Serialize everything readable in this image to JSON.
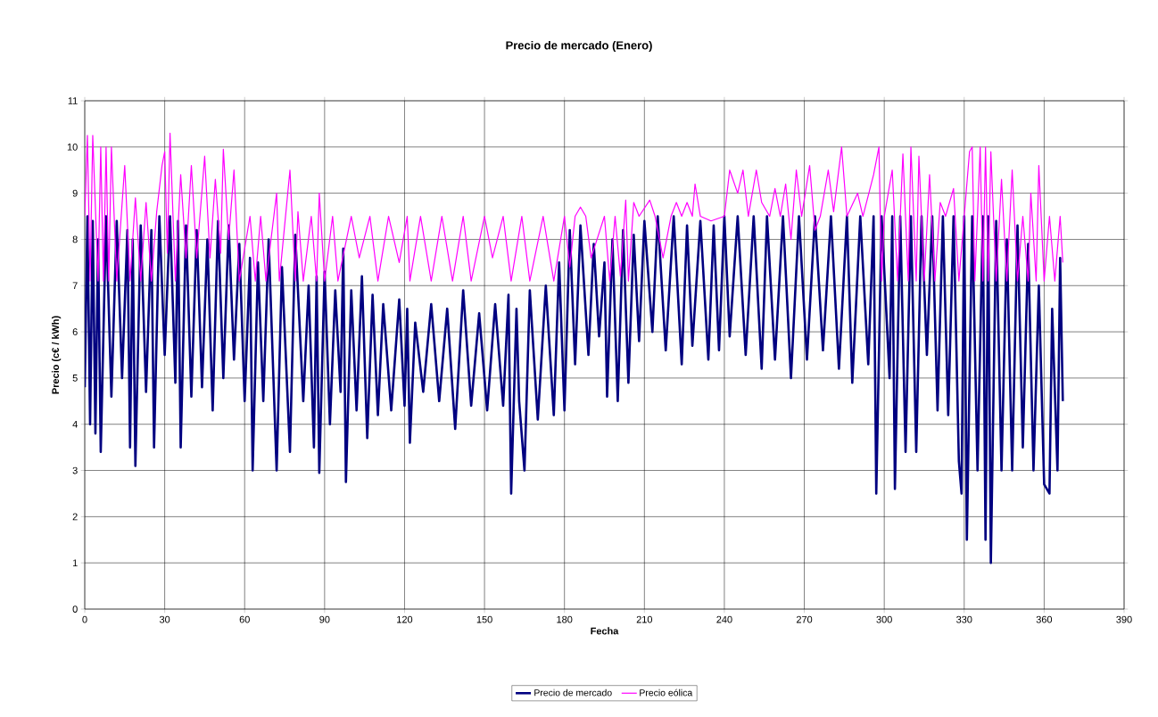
{
  "chart_data": {
    "type": "line",
    "title": "Precio de mercado (Enero)",
    "xlabel": "Fecha",
    "ylabel": "Precio (c€ / kWh)",
    "xlim": [
      0,
      390
    ],
    "xticks": [
      0,
      30,
      60,
      90,
      120,
      150,
      180,
      210,
      240,
      270,
      300,
      330,
      360,
      390
    ],
    "ylim": [
      0,
      11
    ],
    "yticks": [
      0,
      1,
      2,
      3,
      4,
      5,
      6,
      7,
      8,
      9,
      10,
      11
    ],
    "grid": true,
    "legend": "bottom",
    "marker": "none",
    "line_style": "solid",
    "series": [
      {
        "name": "Precio de mercado",
        "color": "#000080",
        "x": [
          0,
          1,
          2,
          3,
          4,
          5,
          6,
          8,
          10,
          12,
          14,
          16,
          17,
          18,
          19,
          21,
          23,
          25,
          26,
          28,
          30,
          32,
          34,
          35,
          36,
          38,
          40,
          42,
          44,
          46,
          48,
          50,
          52,
          54,
          56,
          58,
          60,
          62,
          63,
          65,
          67,
          69,
          72,
          74,
          77,
          79,
          82,
          84,
          86,
          87,
          88,
          90,
          92,
          94,
          96,
          97,
          98,
          100,
          102,
          104,
          106,
          108,
          110,
          112,
          115,
          118,
          120,
          121,
          122,
          124,
          127,
          130,
          133,
          136,
          139,
          142,
          145,
          148,
          151,
          154,
          157,
          159,
          160,
          162,
          163,
          165,
          167,
          170,
          173,
          176,
          178,
          180,
          182,
          184,
          186,
          189,
          191,
          193,
          195,
          196,
          198,
          200,
          202,
          204,
          206,
          208,
          210,
          213,
          215,
          218,
          221,
          224,
          226,
          228,
          231,
          234,
          236,
          238,
          240,
          242,
          245,
          248,
          251,
          254,
          256,
          259,
          262,
          265,
          268,
          271,
          274,
          277,
          280,
          283,
          286,
          288,
          291,
          294,
          296,
          297,
          299,
          302,
          303,
          304,
          306,
          308,
          310,
          312,
          314,
          316,
          318,
          320,
          322,
          324,
          326,
          328,
          329,
          330,
          331,
          333,
          335,
          337,
          338,
          339,
          340,
          342,
          344,
          346,
          348,
          350,
          352,
          354,
          356,
          358,
          360,
          362,
          363,
          365,
          366,
          367
        ],
        "values": [
          4.8,
          8.5,
          4.0,
          8.4,
          3.8,
          8.0,
          3.4,
          8.5,
          4.6,
          8.4,
          5.0,
          8.2,
          3.5,
          8.0,
          3.1,
          8.3,
          4.7,
          8.2,
          3.5,
          8.5,
          5.5,
          8.5,
          4.9,
          8.4,
          3.5,
          8.3,
          4.6,
          8.2,
          4.8,
          8.0,
          4.3,
          8.4,
          5.0,
          8.3,
          5.4,
          7.9,
          4.5,
          7.6,
          3.0,
          7.5,
          4.5,
          8.0,
          3.0,
          7.4,
          3.4,
          8.1,
          4.5,
          7.0,
          3.5,
          7.2,
          2.95,
          7.3,
          4.0,
          6.9,
          4.7,
          7.8,
          2.75,
          6.9,
          4.3,
          7.2,
          3.7,
          6.8,
          4.2,
          6.6,
          4.3,
          6.7,
          4.4,
          6.5,
          3.6,
          6.2,
          4.7,
          6.6,
          4.5,
          6.5,
          3.9,
          6.9,
          4.4,
          6.4,
          4.3,
          6.6,
          4.4,
          6.8,
          2.5,
          6.5,
          4.5,
          3.0,
          6.9,
          4.1,
          7.0,
          4.2,
          7.5,
          4.3,
          8.2,
          5.3,
          8.3,
          5.5,
          7.9,
          5.9,
          7.5,
          4.6,
          8.0,
          4.5,
          8.2,
          4.9,
          8.1,
          5.8,
          8.4,
          6.0,
          8.5,
          5.6,
          8.5,
          5.3,
          8.3,
          5.7,
          8.4,
          5.4,
          8.3,
          5.6,
          8.5,
          5.9,
          8.5,
          5.5,
          8.5,
          5.2,
          8.5,
          5.4,
          8.5,
          5.0,
          8.5,
          5.4,
          8.5,
          5.6,
          8.5,
          5.2,
          8.5,
          4.9,
          8.5,
          5.3,
          8.5,
          2.5,
          8.5,
          5.0,
          8.5,
          2.6,
          8.5,
          3.4,
          8.5,
          3.4,
          8.5,
          5.5,
          8.5,
          4.3,
          8.5,
          4.2,
          8.5,
          3.2,
          2.5,
          8.5,
          1.5,
          8.5,
          3.0,
          8.5,
          1.5,
          8.5,
          1.0,
          8.4,
          3.0,
          8.0,
          3.0,
          8.3,
          3.5,
          7.9,
          3.0,
          7.0,
          2.7,
          2.5,
          6.5,
          3.0,
          7.6,
          4.5
        ]
      },
      {
        "name": "Precio eólica",
        "color": "#ff00ff",
        "x": [
          0,
          1,
          2,
          3,
          5,
          6,
          7,
          8,
          9,
          10,
          12,
          15,
          17,
          19,
          21,
          23,
          25,
          27,
          29,
          30,
          31,
          32,
          34,
          36,
          38,
          40,
          42,
          45,
          47,
          49,
          51,
          52,
          54,
          56,
          58,
          62,
          64,
          66,
          68,
          72,
          73,
          77,
          79,
          80,
          82,
          85,
          87,
          88,
          90,
          93,
          95,
          100,
          103,
          107,
          110,
          114,
          118,
          121,
          122,
          126,
          130,
          134,
          138,
          142,
          145,
          150,
          153,
          157,
          160,
          164,
          167,
          172,
          176,
          180,
          182,
          184,
          186,
          188,
          190,
          195,
          197,
          199,
          201,
          203,
          204,
          206,
          208,
          212,
          214,
          217,
          220,
          222,
          224,
          226,
          228,
          229,
          231,
          235,
          240,
          242,
          245,
          247,
          249,
          252,
          254,
          257,
          259,
          261,
          263,
          265,
          267,
          269,
          272,
          274,
          276,
          279,
          281,
          284,
          286,
          290,
          292,
          296,
          298,
          299,
          300,
          303,
          305,
          307,
          309,
          310,
          312,
          313,
          315,
          317,
          319,
          321,
          323,
          326,
          328,
          330,
          332,
          333,
          334,
          336,
          337,
          338,
          339,
          340,
          342,
          344,
          346,
          348,
          350,
          352,
          354,
          355,
          357,
          358,
          360,
          362,
          364,
          366,
          367
        ],
        "values": [
          8.5,
          10.25,
          7.1,
          10.25,
          7.1,
          10.0,
          7.1,
          10.0,
          7.1,
          10.0,
          7.1,
          9.6,
          7.1,
          8.9,
          7.1,
          8.8,
          7.1,
          8.6,
          9.6,
          9.9,
          7.7,
          10.3,
          7.1,
          9.4,
          7.6,
          9.6,
          7.6,
          9.8,
          7.6,
          9.3,
          7.7,
          9.95,
          8.0,
          9.5,
          7.1,
          8.5,
          7.1,
          8.5,
          7.1,
          9.0,
          7.1,
          9.5,
          7.1,
          8.6,
          7.1,
          8.5,
          7.1,
          9.0,
          7.1,
          8.5,
          7.1,
          8.5,
          7.6,
          8.5,
          7.1,
          8.5,
          7.5,
          8.5,
          7.1,
          8.5,
          7.1,
          8.5,
          7.1,
          8.5,
          7.1,
          8.5,
          7.6,
          8.5,
          7.1,
          8.5,
          7.1,
          8.5,
          7.1,
          8.5,
          7.4,
          8.5,
          8.7,
          8.5,
          7.6,
          8.5,
          7.1,
          8.5,
          7.2,
          8.85,
          7.1,
          8.8,
          8.5,
          8.85,
          8.5,
          7.6,
          8.5,
          8.8,
          8.5,
          8.8,
          8.5,
          9.2,
          8.5,
          8.4,
          8.5,
          9.5,
          9.0,
          9.5,
          8.5,
          9.5,
          8.8,
          8.5,
          9.1,
          8.5,
          9.2,
          8.0,
          9.5,
          8.5,
          9.6,
          8.2,
          8.5,
          9.5,
          8.6,
          10.0,
          8.5,
          9.0,
          8.5,
          9.4,
          10.0,
          7.1,
          8.5,
          9.5,
          7.1,
          9.85,
          7.1,
          10.0,
          7.1,
          9.8,
          7.1,
          9.4,
          7.1,
          8.8,
          8.5,
          9.1,
          7.1,
          8.5,
          9.9,
          10.0,
          7.1,
          10.0,
          7.1,
          10.0,
          7.1,
          9.9,
          7.1,
          9.3,
          7.1,
          9.5,
          7.1,
          8.5,
          7.1,
          9.0,
          7.1,
          9.6,
          7.1,
          8.5,
          7.1,
          8.5,
          7.5
        ]
      }
    ]
  }
}
